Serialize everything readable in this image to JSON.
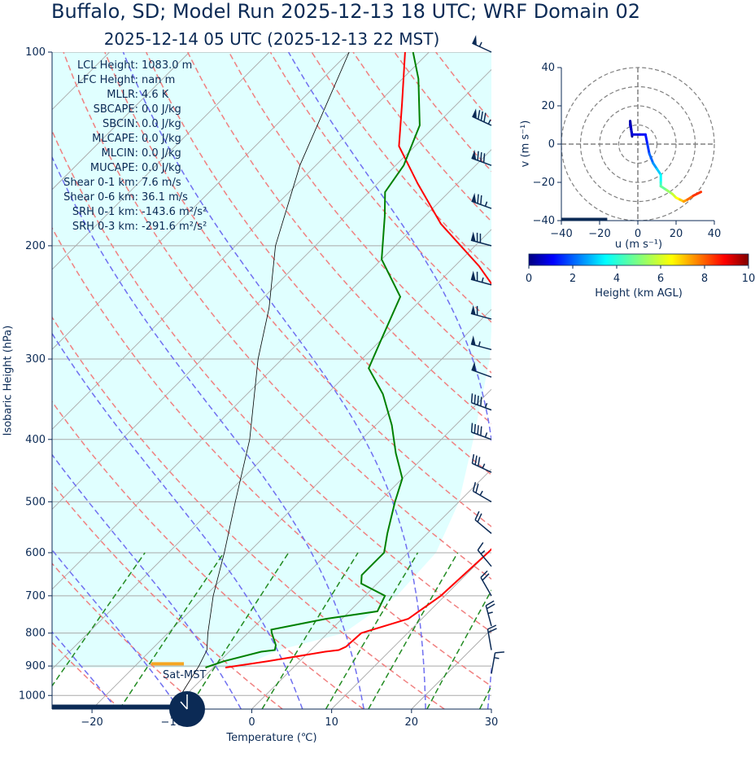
{
  "header": {
    "title": "Buffalo, SD; Model Run 2025-12-13 18 UTC; WRF Domain 02",
    "subtitle": "2025-12-14 05 UTC  (2025-12-13 22 MST)"
  },
  "stats": [
    {
      "label": "LCL Height:",
      "value": "1083.0 m"
    },
    {
      "label": "LFC Height:",
      "value": "nan m"
    },
    {
      "label": "MLLR:",
      "value": "4.6 K"
    },
    {
      "label": "SBCAPE:",
      "value": "0.0 J/kg"
    },
    {
      "label": "SBCIN:",
      "value": "0.0 J/kg"
    },
    {
      "label": "MLCAPE:",
      "value": "0.0 J/kg"
    },
    {
      "label": "MLCIN:",
      "value": "0.0 J/kg"
    },
    {
      "label": "MUCAPE:",
      "value": "0.0 J/kg"
    },
    {
      "label": "Shear 0-1 km:",
      "value": "7.6 m/s"
    },
    {
      "label": "Shear 0-6 km:",
      "value": "36.1 m/s"
    },
    {
      "label": "SRH 0-1 km:",
      "value": "-143.6 m²/s²"
    },
    {
      "label": "SRH 0-3 km:",
      "value": "-291.6 m²/s²"
    }
  ],
  "colors": {
    "navy": "#0b2a55",
    "temperature": "#ff0000",
    "dewpoint": "#008000",
    "parcel_shading": "#e0ffff",
    "dry_adiabats": "#f08080",
    "moist_adiabats": "#6f6ff0",
    "mixing_ratio": "#228b22",
    "isotherms": "#a9a9a9",
    "lcl_marker": "#f5a623"
  },
  "chart_data": [
    {
      "type": "line",
      "name": "skew-t",
      "xlabel": "Temperature (℃)",
      "ylabel": "Isobaric Height (hPa)",
      "xlim": [
        -25,
        30
      ],
      "ylim": [
        1050,
        100
      ],
      "y_scale": "log",
      "skew_deg": 45,
      "x_ticks": [
        -20,
        -10,
        0,
        10,
        20,
        30
      ],
      "x_tick_labels": [
        "−20",
        "−10",
        "0",
        "10",
        "20",
        "30"
      ],
      "y_ticks": [
        100,
        200,
        300,
        400,
        500,
        600,
        700,
        800,
        900,
        1000
      ],
      "y_tick_labels": [
        "100",
        "200",
        "300",
        "400",
        "500",
        "600",
        "700",
        "800",
        "900",
        "1000"
      ],
      "grid": true,
      "series": [
        {
          "name": "temperature",
          "pressure": [
            905,
            885,
            855,
            850,
            840,
            800,
            760,
            700,
            600,
            560,
            500,
            430,
            380,
            330,
            290,
            250,
            215,
            185,
            160,
            140,
            120,
            100
          ],
          "values": [
            -8.5,
            -4,
            2,
            3.5,
            4,
            4.2,
            8.3,
            9.5,
            10,
            10,
            8,
            4,
            1,
            -4,
            -10,
            -18,
            -27,
            -37,
            -45,
            -52,
            -57,
            -63
          ]
        },
        {
          "name": "dewpoint",
          "pressure": [
            905,
            885,
            855,
            850,
            835,
            800,
            790,
            760,
            740,
            700,
            670,
            650,
            620,
            600,
            560,
            500,
            460,
            420,
            380,
            340,
            310,
            280,
            240,
            210,
            180,
            165,
            150,
            130,
            110,
            100
          ],
          "values": [
            -11,
            -9.5,
            -6,
            -4.5,
            -5,
            -7,
            -7.5,
            -2,
            3.5,
            2.5,
            -2,
            -3,
            -3,
            -3,
            -5,
            -8,
            -10,
            -14,
            -18,
            -23,
            -28,
            -30,
            -33,
            -40,
            -45,
            -48,
            -49,
            -52,
            -58,
            -62
          ]
        }
      ],
      "lcl": {
        "pressure": 893
      },
      "wind_barbs": [
        {
          "pressure": 100,
          "speed_kt": 55,
          "direction_deg": 295
        },
        {
          "pressure": 130,
          "speed_kt": 85,
          "direction_deg": 295
        },
        {
          "pressure": 150,
          "speed_kt": 80,
          "direction_deg": 290
        },
        {
          "pressure": 175,
          "speed_kt": 75,
          "direction_deg": 290
        },
        {
          "pressure": 200,
          "speed_kt": 70,
          "direction_deg": 285
        },
        {
          "pressure": 230,
          "speed_kt": 65,
          "direction_deg": 285
        },
        {
          "pressure": 260,
          "speed_kt": 60,
          "direction_deg": 285
        },
        {
          "pressure": 290,
          "speed_kt": 55,
          "direction_deg": 285
        },
        {
          "pressure": 320,
          "speed_kt": 50,
          "direction_deg": 290
        },
        {
          "pressure": 360,
          "speed_kt": 45,
          "direction_deg": 290
        },
        {
          "pressure": 400,
          "speed_kt": 45,
          "direction_deg": 290
        },
        {
          "pressure": 450,
          "speed_kt": 35,
          "direction_deg": 295
        },
        {
          "pressure": 500,
          "speed_kt": 25,
          "direction_deg": 300
        },
        {
          "pressure": 560,
          "speed_kt": 20,
          "direction_deg": 310
        },
        {
          "pressure": 630,
          "speed_kt": 15,
          "direction_deg": 320
        },
        {
          "pressure": 700,
          "speed_kt": 20,
          "direction_deg": 330
        },
        {
          "pressure": 780,
          "speed_kt": 25,
          "direction_deg": 345
        },
        {
          "pressure": 850,
          "speed_kt": 20,
          "direction_deg": 350
        },
        {
          "pressure": 925,
          "speed_kt": 15,
          "direction_deg": 10
        }
      ]
    },
    {
      "type": "line",
      "name": "hodograph",
      "xlabel": "u (m s⁻¹)",
      "ylabel": "v (m s⁻¹)",
      "xlim": [
        -40,
        40
      ],
      "ylim": [
        -40,
        40
      ],
      "x_ticks": [
        -40,
        -20,
        0,
        20,
        40
      ],
      "x_tick_labels": [
        "−40",
        "−20",
        "0",
        "20",
        "40"
      ],
      "y_ticks": [
        -40,
        -20,
        0,
        20,
        40
      ],
      "y_tick_labels": [
        "−40",
        "−20",
        "0",
        "20",
        "40"
      ],
      "rings": [
        10,
        20,
        30,
        40
      ],
      "height_km": [
        0,
        0.3,
        0.6,
        0.8,
        1,
        1.3,
        1.6,
        2,
        2.5,
        3,
        3.5,
        4,
        4.5,
        5,
        5.5,
        6,
        6.5,
        7,
        7.5,
        8,
        8.5
      ],
      "u": [
        -3,
        -4,
        -4,
        -3,
        1,
        4,
        5,
        6,
        8,
        10,
        12,
        12,
        12,
        15,
        18,
        20,
        22,
        24,
        26,
        29,
        33
      ],
      "v": [
        4,
        12,
        10,
        5,
        5,
        5,
        0,
        -5,
        -10,
        -13,
        -16,
        -20,
        -22,
        -24,
        -26,
        -28,
        -29,
        -30,
        -29,
        -27,
        -25
      ]
    },
    {
      "type": "heatmap",
      "name": "colorbar",
      "label": "Height (km AGL)",
      "range": [
        0,
        10
      ],
      "ticks": [
        0,
        2,
        4,
        6,
        8,
        10
      ],
      "tick_labels": [
        "0",
        "2",
        "4",
        "6",
        "8",
        "10"
      ],
      "colormap": "jet"
    }
  ],
  "annotations": {
    "sat_label": "Sat-MST",
    "clock_time": "22:00"
  }
}
